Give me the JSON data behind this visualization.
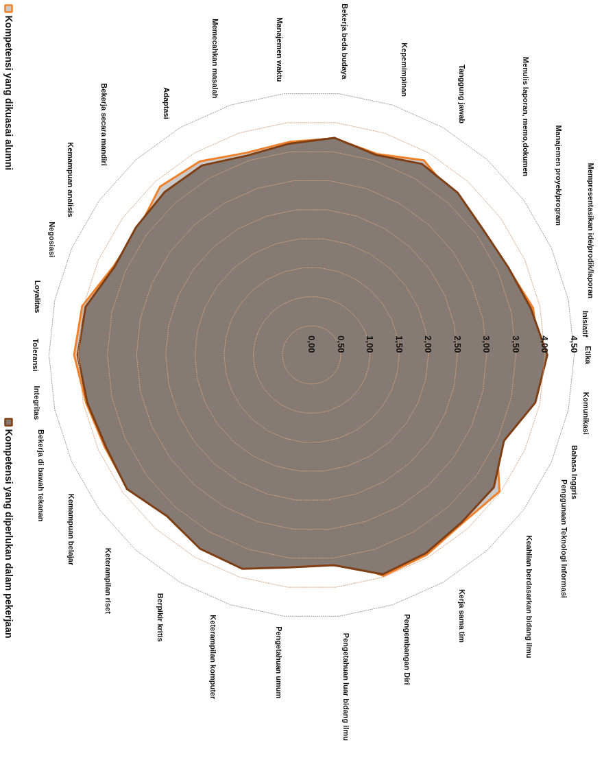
{
  "chart_data": {
    "type": "radar",
    "categories": [
      "Etika",
      "Komunikasi",
      "Bahasa Inggris",
      "Penggunaan Teknologi Informasi",
      "Keahlian berdasarkan bidang ilmu",
      "Kerja sama tim",
      "Pengembangan Diri",
      "Pengetahuan luar bidang ilmu",
      "Pengetahuan umum",
      "Keterampilan komputer",
      "Berpikir kritis",
      "Keterampilan riset",
      "Kemampuan belajar",
      "Bekerja di bawah tekanan",
      "Integritas",
      "Toleransi",
      "Loyalitas",
      "Negosiasi",
      "Kemampuan analisis",
      "Bekerja secara mandiri",
      "Adaptasi",
      "Memecahkan masalah",
      "Manajemen waktu",
      "Bekerja beda budaya",
      "Kepemimpinan",
      "Tanggung jawab",
      "Menulis laporan, memo,dokumen",
      "Manajemen proyek/program",
      "Mempresentasikan ide/prodik/laporan",
      "Inisiatif"
    ],
    "series": [
      {
        "name": "Kompetensi yang dikuasai alumni",
        "color": "#f0802a",
        "values": [
          3.9,
          3.89,
          3.47,
          3.98,
          3.87,
          3.95,
          3.98,
          3.47,
          3.46,
          3.78,
          3.73,
          3.52,
          3.9,
          3.88,
          3.95,
          4.07,
          4.02,
          3.72,
          3.67,
          3.88,
          3.83,
          3.64,
          3.67,
          3.73,
          3.62,
          3.85,
          3.64,
          3.58,
          3.68,
          3.88
        ]
      },
      {
        "name": "Kompetensi yang diperlukan dalam pekerjaan",
        "color": "#7f3f14",
        "values": [
          4.04,
          3.92,
          3.61,
          3.86,
          3.85,
          3.92,
          3.95,
          3.62,
          3.66,
          3.85,
          3.83,
          3.71,
          3.91,
          3.86,
          3.93,
          4.01,
          3.96,
          3.7,
          3.72,
          3.76,
          3.75,
          3.59,
          3.64,
          3.74,
          3.6,
          3.78,
          3.74,
          3.64,
          3.69,
          3.84
        ]
      }
    ],
    "ylim": [
      0,
      4.5
    ],
    "yticks": [
      {
        "value": 0,
        "label": "0,00"
      },
      {
        "value": 0.5,
        "label": "0,50"
      },
      {
        "value": 1,
        "label": "1,00"
      },
      {
        "value": 1.5,
        "label": "1,50"
      },
      {
        "value": 2,
        "label": "2,00"
      },
      {
        "value": 2.5,
        "label": "2,50"
      },
      {
        "value": 3,
        "label": "3,00"
      },
      {
        "value": 3.5,
        "label": "3,50"
      },
      {
        "value": 4,
        "label": "4,00"
      },
      {
        "value": 4.5,
        "label": "4,50"
      }
    ],
    "legend": "left",
    "marker": "none",
    "line_style": "solid"
  }
}
